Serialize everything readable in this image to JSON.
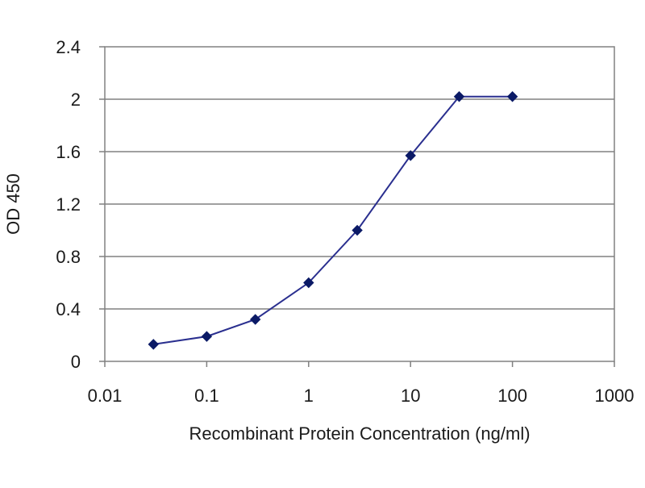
{
  "chart_data": {
    "type": "line",
    "title": "",
    "xlabel": "Recombinant Protein Concentration (ng/ml)",
    "ylabel": "OD 450",
    "x_scale": "log",
    "xlim": [
      0.01,
      1000
    ],
    "ylim": [
      0,
      2.4
    ],
    "x_ticks": [
      "0.01",
      "0.1",
      "1",
      "10",
      "100",
      "1000"
    ],
    "y_ticks": [
      "0",
      "0.4",
      "0.8",
      "1.2",
      "1.6",
      "2",
      "2.4"
    ],
    "grid": "horizontal",
    "legend": "none",
    "series": [
      {
        "color": "#2a2f8f",
        "marker_color": "#0b1a66",
        "points": [
          {
            "x": 0.03,
            "y": 0.13
          },
          {
            "x": 0.1,
            "y": 0.19
          },
          {
            "x": 0.3,
            "y": 0.32
          },
          {
            "x": 1,
            "y": 0.6
          },
          {
            "x": 3,
            "y": 1.0
          },
          {
            "x": 10,
            "y": 1.57
          },
          {
            "x": 30,
            "y": 2.02
          },
          {
            "x": 100,
            "y": 2.02
          }
        ]
      }
    ]
  }
}
